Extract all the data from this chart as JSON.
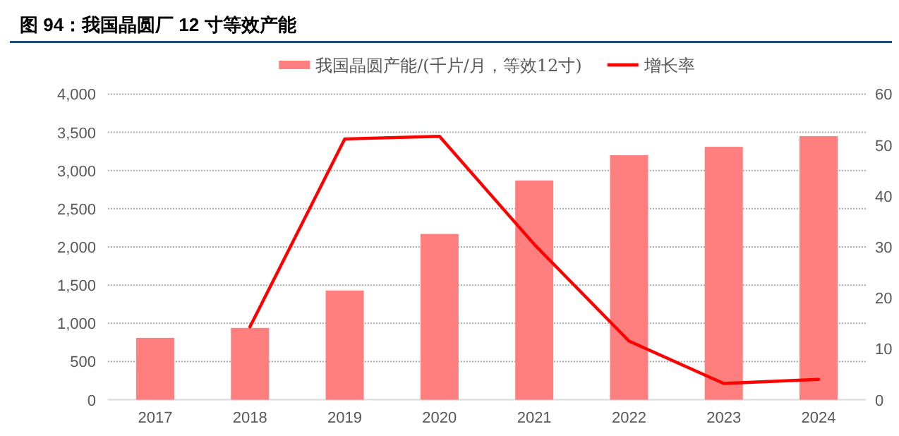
{
  "chart_data": {
    "type": "bar",
    "title": "图 94：我国晶圆厂 12 寸等效产能",
    "categories": [
      "2017",
      "2018",
      "2019",
      "2020",
      "2021",
      "2022",
      "2023",
      "2024"
    ],
    "series": [
      {
        "name": "我国晶圆产能/(千片/月，等效12寸)",
        "color": "#ff7f7f",
        "values": [
          810,
          940,
          1430,
          2170,
          2870,
          3200,
          3310,
          3450
        ]
      },
      {
        "name": "增长率",
        "type": "line",
        "axis": "y2",
        "color": "#ff0000",
        "values": [
          null,
          14.3,
          51.2,
          51.7,
          30.5,
          11.5,
          3.2,
          4.0
        ]
      }
    ],
    "ylim": [
      0,
      4000
    ],
    "yticks": [
      0,
      500,
      {
        "value": 1000,
        "label": "1,000"
      },
      {
        "value": 1500,
        "label": "1,500"
      },
      {
        "value": 2000,
        "label": "2,000"
      },
      {
        "value": 2500,
        "label": "2,500"
      },
      {
        "value": 3000,
        "label": "3,000"
      },
      {
        "value": 3500,
        "label": "3,500"
      },
      {
        "value": 4000,
        "label": "4,000"
      }
    ],
    "y2lim": [
      0,
      60
    ],
    "y2ticks": [
      0,
      10,
      20,
      30,
      40,
      50,
      60
    ],
    "grid": "y",
    "legend": "top"
  }
}
